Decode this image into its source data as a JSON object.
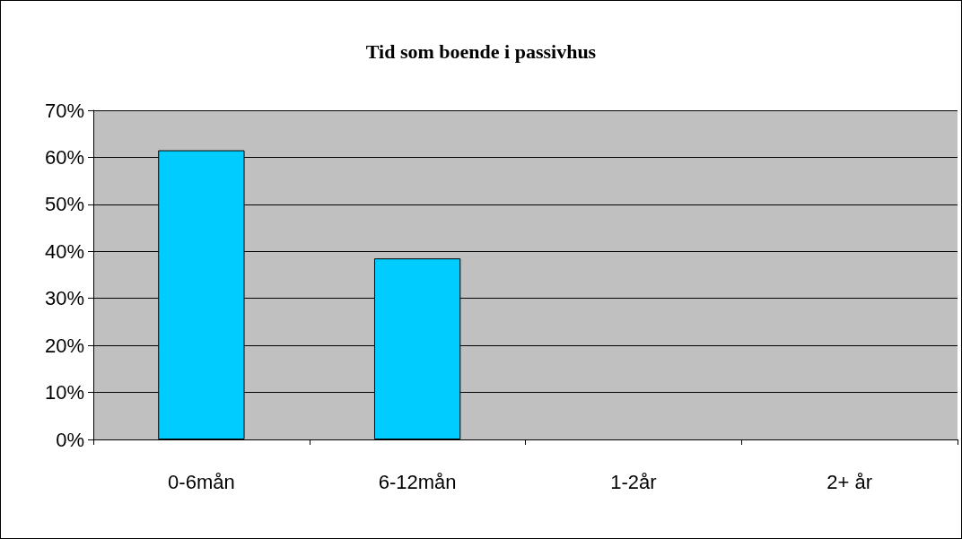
{
  "chart_data": {
    "type": "bar",
    "title": "Tid som boende i passivhus",
    "categories": [
      "0-6mån",
      "6-12mån",
      "1-2år",
      "2+ år"
    ],
    "values": [
      61.5,
      38.5,
      0,
      0
    ],
    "color": "#00ccff",
    "ylim": [
      0,
      70
    ],
    "yticks": [
      {
        "value": 0,
        "label": "0%"
      },
      {
        "value": 10,
        "label": "10%"
      },
      {
        "value": 20,
        "label": "20%"
      },
      {
        "value": 30,
        "label": "30%"
      },
      {
        "value": 40,
        "label": "40%"
      },
      {
        "value": 50,
        "label": "50%"
      },
      {
        "value": 60,
        "label": "60%"
      },
      {
        "value": 70,
        "label": "70%"
      }
    ],
    "grid": "y"
  }
}
